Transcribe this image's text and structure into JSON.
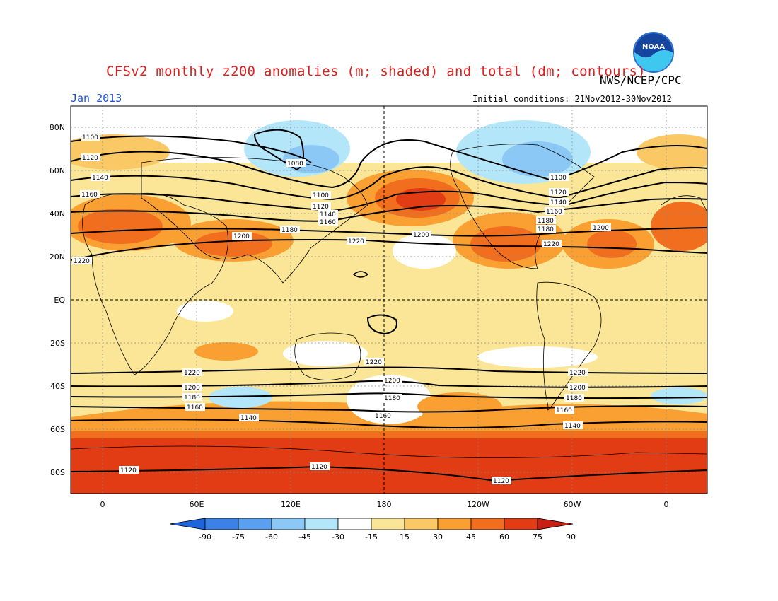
{
  "header": {
    "title": "CFSv2 monthly z200 anomalies (m; shaded) and total (dm; contours)",
    "agency": "NWS/NCEP/CPC",
    "date": "Jan 2013",
    "initial_conditions": "Initial conditions: 21Nov2012-30Nov2012",
    "logo_text": "NOAA"
  },
  "axes": {
    "lat_labels": [
      "80N",
      "60N",
      "40N",
      "20N",
      "EQ",
      "20S",
      "40S",
      "60S",
      "80S"
    ],
    "lon_labels": [
      "0",
      "60E",
      "120E",
      "180",
      "120W",
      "60W",
      "0"
    ]
  },
  "colorbar": {
    "labels": [
      "-90",
      "-75",
      "-60",
      "-45",
      "-30",
      "-15",
      "15",
      "30",
      "45",
      "60",
      "75",
      "90"
    ],
    "colors": [
      "#1e64dc",
      "#3c82e6",
      "#5aa0f0",
      "#8cc8f5",
      "#b4e6fa",
      "#ffffff",
      "#fae696",
      "#fac864",
      "#faa032",
      "#f06e1e",
      "#e13c14",
      "#c81e14"
    ]
  },
  "contour_labels": [
    "1100",
    "1120",
    "1140",
    "1160",
    "1180",
    "1200",
    "1220",
    "1080",
    "1100",
    "1120",
    "1140",
    "1160",
    "1180",
    "1200",
    "1220",
    "1100",
    "1120",
    "1140",
    "1160",
    "1180",
    "1200",
    "1220",
    "1220",
    "1200",
    "1180",
    "1160",
    "1140",
    "1120",
    "1220",
    "1200",
    "1180",
    "1160",
    "1140",
    "1120",
    "1220",
    "1200",
    "1180",
    "1160",
    "1140",
    "1120"
  ]
}
